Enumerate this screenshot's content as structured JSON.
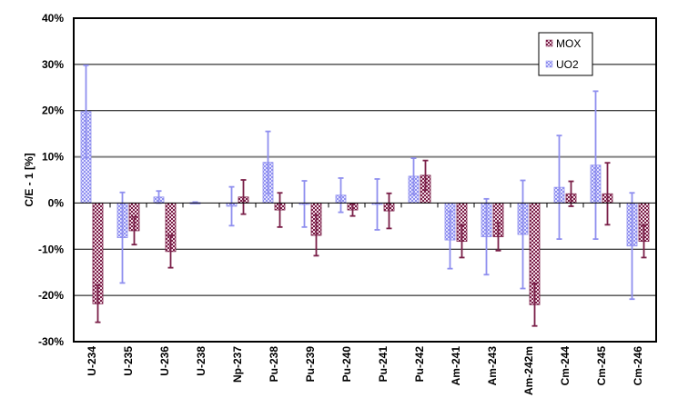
{
  "chart_data": {
    "type": "bar",
    "title": "",
    "xlabel": "",
    "ylabel": "C/E - 1 [%]",
    "ylim": [
      -30,
      40
    ],
    "yticks": [
      -30,
      -20,
      -10,
      0,
      10,
      20,
      30,
      40
    ],
    "ytick_labels": [
      "-30%",
      "-20%",
      "-10%",
      "0%",
      "10%",
      "20%",
      "30%",
      "40%"
    ],
    "grid": true,
    "legend_position": "top-right",
    "categories": [
      "U-234",
      "U-235",
      "U-236",
      "U-238",
      "Np-237",
      "Pu-238",
      "Pu-239",
      "Pu-240",
      "Pu-241",
      "Pu-242",
      "Am-241",
      "Am-243",
      "Am-242m",
      "Cm-244",
      "Cm-245",
      "Cm-246"
    ],
    "series": [
      {
        "name": "UO2",
        "color": "#8f8fef",
        "values": [
          19.8,
          -7.5,
          1.3,
          0.1,
          -0.7,
          8.8,
          -0.2,
          1.7,
          -0.3,
          5.8,
          -8.0,
          -7.3,
          -6.8,
          3.4,
          8.2,
          -9.3
        ],
        "errors": [
          10.0,
          9.8,
          1.3,
          0.1,
          4.2,
          6.7,
          5.0,
          3.7,
          5.5,
          3.9,
          6.2,
          8.2,
          11.7,
          11.2,
          16.0,
          11.5
        ]
      },
      {
        "name": "MOX",
        "color": "#7a1f48",
        "values": [
          -21.8,
          -6.0,
          -10.5,
          null,
          1.3,
          -1.5,
          -7.0,
          -1.5,
          -1.7,
          6.0,
          -8.3,
          -7.3,
          -22.0,
          2.0,
          2.0,
          -8.3
        ],
        "errors": [
          4.0,
          3.0,
          3.5,
          null,
          3.7,
          3.7,
          4.4,
          1.3,
          3.8,
          3.2,
          3.5,
          3.0,
          4.6,
          2.7,
          6.7,
          3.5
        ]
      }
    ]
  }
}
